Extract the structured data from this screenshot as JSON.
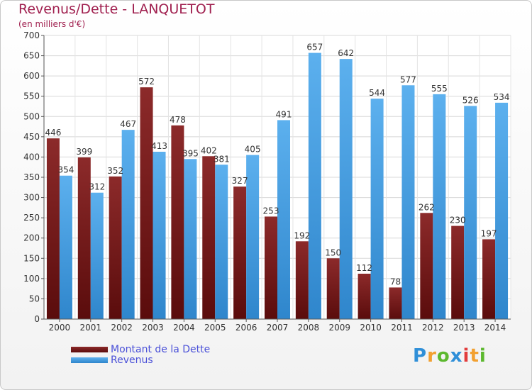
{
  "chart_data": {
    "type": "bar",
    "title": "Revenus/Dette - LANQUETOT",
    "subtitle": "(en milliers d'€)",
    "categories": [
      "2000",
      "2001",
      "2002",
      "2003",
      "2004",
      "2005",
      "2006",
      "2007",
      "2008",
      "2009",
      "2010",
      "2011",
      "2012",
      "2013",
      "2014"
    ],
    "series": [
      {
        "name": "Montant de la Dette",
        "color": "#7a1c1c",
        "values": [
          446,
          399,
          352,
          572,
          478,
          402,
          327,
          253,
          192,
          150,
          112,
          78,
          262,
          230,
          197
        ]
      },
      {
        "name": "Revenus",
        "color": "#4aa3e6",
        "values": [
          354,
          312,
          467,
          413,
          395,
          381,
          405,
          491,
          657,
          642,
          544,
          577,
          555,
          526,
          534
        ]
      }
    ],
    "yticks": [
      0,
      50,
      100,
      150,
      200,
      250,
      300,
      350,
      400,
      450,
      500,
      550,
      600,
      650,
      700
    ],
    "ylim": [
      0,
      700
    ],
    "grid": true,
    "legend": "bottom-left"
  },
  "logo": {
    "text": "Proxiti",
    "letters": [
      "P",
      "r",
      "o",
      "x",
      "i",
      "t",
      "i"
    ],
    "colors": [
      "#2f8fd8",
      "#f2a030",
      "#5cb82e",
      "#2f8fd8",
      "#e23c3c",
      "#f2a030",
      "#5cb82e"
    ]
  }
}
